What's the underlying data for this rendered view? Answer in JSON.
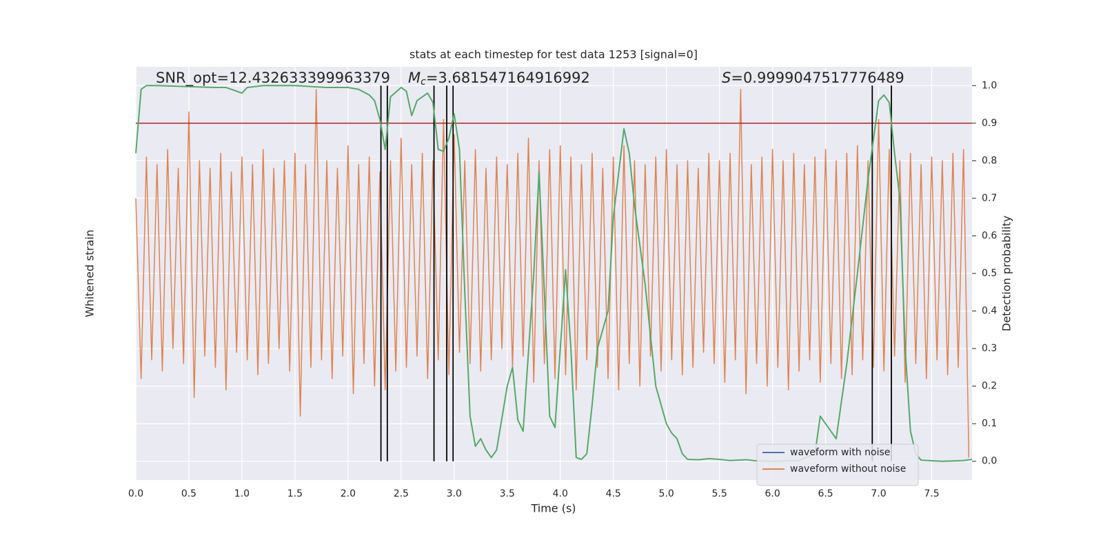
{
  "chart_data": {
    "type": "line",
    "title": "stats at each timestep for test data 1253 [signal=0]",
    "xlabel": "Time (s)",
    "ylabel": "Whitened strain",
    "y2label": "Detection probability",
    "annotations": [
      {
        "text": "SNR_opt=12.432633399963379"
      },
      {
        "symbol": "M",
        "subscript": "c",
        "text": "=3.681547164916992"
      },
      {
        "symbol": "S",
        "text": "=0.9999047517776489"
      }
    ],
    "xlim": [
      0,
      7.88
    ],
    "xticks": [
      {
        "value": 0,
        "label": "0.0"
      },
      0.5,
      {
        "value": 1,
        "label": "1.0"
      },
      1.5,
      {
        "value": 2,
        "label": "2.0"
      },
      2.5,
      {
        "value": 3,
        "label": "3.0"
      },
      3.5,
      {
        "value": 4,
        "label": "4.0"
      },
      4.5,
      {
        "value": 5,
        "label": "5.0"
      },
      5.5,
      {
        "value": 6,
        "label": "6.0"
      },
      6.5,
      {
        "value": 7,
        "label": "7.0"
      },
      7.5
    ],
    "y2lim": [
      -0.05,
      1.05
    ],
    "y2ticks": [
      {
        "value": 0,
        "label": "0.0"
      },
      0.1,
      0.2,
      0.3,
      0.4,
      0.5,
      0.6,
      0.7,
      0.8,
      0.9,
      {
        "value": 1,
        "label": "1.0"
      }
    ],
    "grid": true,
    "legend": "lower right",
    "series": [
      {
        "name": "waveform with noise",
        "color": "#4c72b0"
      },
      {
        "name": "waveform without noise",
        "color": "#dd8452",
        "axis": "y2",
        "x": [
          0,
          0.05,
          0.1,
          0.15,
          0.2,
          0.25,
          0.3,
          0.35,
          0.4,
          0.45,
          0.5,
          0.55,
          0.6,
          0.65,
          0.7,
          0.75,
          0.8,
          0.85,
          0.9,
          0.95,
          1,
          1.05,
          1.1,
          1.15,
          1.2,
          1.25,
          1.3,
          1.35,
          1.4,
          1.45,
          1.5,
          1.55,
          1.6,
          1.65,
          1.7,
          1.75,
          1.8,
          1.85,
          1.9,
          1.95,
          2,
          2.05,
          2.1,
          2.15,
          2.2,
          2.25,
          2.3,
          2.35,
          2.4,
          2.45,
          2.5,
          2.55,
          2.6,
          2.65,
          2.7,
          2.75,
          2.8,
          2.85,
          2.9,
          2.95,
          3,
          3.05,
          3.1,
          3.15,
          3.2,
          3.25,
          3.3,
          3.35,
          3.4,
          3.45,
          3.5,
          3.55,
          3.6,
          3.65,
          3.7,
          3.75,
          3.8,
          3.85,
          3.9,
          3.95,
          4,
          4.05,
          4.1,
          4.15,
          4.2,
          4.25,
          4.3,
          4.35,
          4.4,
          4.45,
          4.5,
          4.55,
          4.6,
          4.65,
          4.7,
          4.75,
          4.8,
          4.85,
          4.9,
          4.95,
          5,
          5.05,
          5.1,
          5.15,
          5.2,
          5.25,
          5.3,
          5.35,
          5.4,
          5.45,
          5.5,
          5.55,
          5.6,
          5.65,
          5.7,
          5.75,
          5.8,
          5.85,
          5.9,
          5.95,
          6,
          6.05,
          6.1,
          6.15,
          6.2,
          6.25,
          6.3,
          6.35,
          6.4,
          6.45,
          6.5,
          6.55,
          6.6,
          6.65,
          6.7,
          6.75,
          6.8,
          6.85,
          6.9,
          6.95,
          7,
          7.05,
          7.1,
          7.15,
          7.2,
          7.25,
          7.3,
          7.35,
          7.4,
          7.45,
          7.5,
          7.55,
          7.6,
          7.65,
          7.7,
          7.75,
          7.8,
          7.85
        ],
        "values": [
          0.7,
          0.22,
          0.81,
          0.27,
          0.79,
          0.24,
          0.83,
          0.3,
          0.78,
          0.26,
          0.93,
          0.17,
          0.8,
          0.28,
          0.78,
          0.25,
          0.82,
          0.19,
          0.77,
          0.29,
          0.81,
          0.27,
          0.79,
          0.23,
          0.83,
          0.26,
          0.78,
          0.3,
          0.8,
          0.24,
          0.82,
          0.12,
          0.79,
          0.25,
          0.99,
          0.27,
          0.8,
          0.22,
          0.78,
          0.28,
          0.84,
          0.18,
          0.79,
          0.26,
          0.81,
          0.2,
          0.77,
          0.19,
          0.8,
          0.24,
          0.86,
          0.25,
          0.79,
          0.28,
          0.82,
          0.22,
          0.8,
          0.27,
          0.91,
          0.23,
          0.87,
          0.29,
          0.8,
          0.26,
          0.83,
          0.24,
          0.78,
          0.27,
          0.81,
          0.3,
          0.79,
          0.25,
          0.82,
          0.28,
          0.86,
          0.21,
          0.8,
          0.26,
          0.83,
          0.22,
          0.84,
          0.23,
          0.81,
          0.19,
          0.79,
          0.27,
          0.82,
          0.25,
          0.78,
          0.22,
          0.81,
          0.19,
          0.84,
          0.26,
          0.8,
          0.2,
          0.79,
          0.28,
          0.81,
          0.24,
          0.83,
          0.27,
          0.79,
          0.23,
          0.8,
          0.25,
          0.78,
          0.29,
          0.82,
          0.26,
          0.8,
          0.21,
          0.82,
          0.27,
          0.99,
          0.18,
          0.79,
          0.26,
          0.81,
          0.2,
          0.83,
          0.25,
          0.8,
          0.19,
          0.82,
          0.24,
          0.79,
          0.27,
          0.81,
          0.21,
          0.83,
          0.26,
          0.8,
          0.22,
          0.82,
          0.23,
          0.84,
          0.27,
          0.8,
          0.25,
          0.91,
          0.24,
          0.83,
          0.28,
          0.8,
          0.21,
          0.82,
          0.26,
          0.79,
          0.22,
          0.81,
          0.27,
          0.8,
          0.23,
          0.82,
          0.25,
          0.83,
          0.01
        ]
      }
    ],
    "probability": {
      "color": "#55a868",
      "axis": "y2",
      "x": [
        0.0,
        0.05,
        0.1,
        0.2,
        0.75,
        0.85,
        0.95,
        1.0,
        1.05,
        1.2,
        1.5,
        1.8,
        2.0,
        2.1,
        2.2,
        2.25,
        2.3,
        2.35,
        2.4,
        2.5,
        2.55,
        2.6,
        2.65,
        2.75,
        2.8,
        2.85,
        2.9,
        2.95,
        3.0,
        3.05,
        3.1,
        3.15,
        3.2,
        3.25,
        3.3,
        3.35,
        3.4,
        3.5,
        3.55,
        3.6,
        3.65,
        3.75,
        3.8,
        3.85,
        3.9,
        3.95,
        4.05,
        4.1,
        4.15,
        4.2,
        4.25,
        4.3,
        4.35,
        4.45,
        4.5,
        4.6,
        4.65,
        4.7,
        4.8,
        4.9,
        5.0,
        5.05,
        5.1,
        5.15,
        5.2,
        5.3,
        5.4,
        5.5,
        5.6,
        5.75,
        5.85,
        6.0,
        6.25,
        6.4,
        6.45,
        6.55,
        6.6,
        6.7,
        6.8,
        6.9,
        7.0,
        7.05,
        7.1,
        7.15,
        7.2,
        7.25,
        7.3,
        7.35,
        7.4,
        7.6,
        7.8,
        7.88
      ],
      "values": [
        0.82,
        0.99,
        1.0,
        1.0,
        0.995,
        0.995,
        0.985,
        0.98,
        0.995,
        1.0,
        1.0,
        0.995,
        0.995,
        0.99,
        0.975,
        0.96,
        0.91,
        0.83,
        0.97,
        0.995,
        0.985,
        0.92,
        0.96,
        0.98,
        0.955,
        0.83,
        0.825,
        0.86,
        0.925,
        0.83,
        0.45,
        0.12,
        0.04,
        0.06,
        0.03,
        0.01,
        0.03,
        0.2,
        0.25,
        0.11,
        0.08,
        0.5,
        0.77,
        0.45,
        0.12,
        0.09,
        0.51,
        0.3,
        0.01,
        0.005,
        0.02,
        0.15,
        0.3,
        0.4,
        0.65,
        0.885,
        0.82,
        0.68,
        0.47,
        0.2,
        0.1,
        0.075,
        0.06,
        0.02,
        0.005,
        0.004,
        0.007,
        0.005,
        0.002,
        0.004,
        0.001,
        0.0,
        0.002,
        0.02,
        0.12,
        0.08,
        0.06,
        0.26,
        0.5,
        0.75,
        0.96,
        0.975,
        0.955,
        0.82,
        0.7,
        0.3,
        0.08,
        0.02,
        0.003,
        0.0,
        0.002,
        0.005
      ]
    },
    "threshold": {
      "value": 0.9,
      "color": "#b22222"
    },
    "vlines": {
      "color": "#000000",
      "x": [
        2.31,
        2.37,
        2.81,
        2.93,
        2.99,
        6.94,
        7.12
      ],
      "ymin": 0,
      "ymax": 1
    }
  }
}
